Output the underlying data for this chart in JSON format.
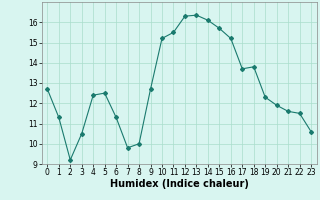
{
  "x": [
    0,
    1,
    2,
    3,
    4,
    5,
    6,
    7,
    8,
    9,
    10,
    11,
    12,
    13,
    14,
    15,
    16,
    17,
    18,
    19,
    20,
    21,
    22,
    23
  ],
  "y": [
    12.7,
    11.3,
    9.2,
    10.5,
    12.4,
    12.5,
    11.3,
    9.8,
    10.0,
    12.7,
    15.2,
    15.5,
    16.3,
    16.35,
    16.1,
    15.7,
    15.2,
    13.7,
    13.8,
    12.3,
    11.9,
    11.6,
    11.5,
    10.6
  ],
  "line_color": "#1a7a6e",
  "marker": "D",
  "marker_size": 2,
  "bg_color": "#d8f5f0",
  "grid_color": "#aaddcc",
  "xlabel": "Humidex (Indice chaleur)",
  "xlabel_fontsize": 7,
  "xlim": [
    -0.5,
    23.5
  ],
  "ylim": [
    9,
    17
  ],
  "yticks": [
    9,
    10,
    11,
    12,
    13,
    14,
    15,
    16
  ],
  "xticks": [
    0,
    1,
    2,
    3,
    4,
    5,
    6,
    7,
    8,
    9,
    10,
    11,
    12,
    13,
    14,
    15,
    16,
    17,
    18,
    19,
    20,
    21,
    22,
    23
  ],
  "tick_fontsize": 5.5
}
